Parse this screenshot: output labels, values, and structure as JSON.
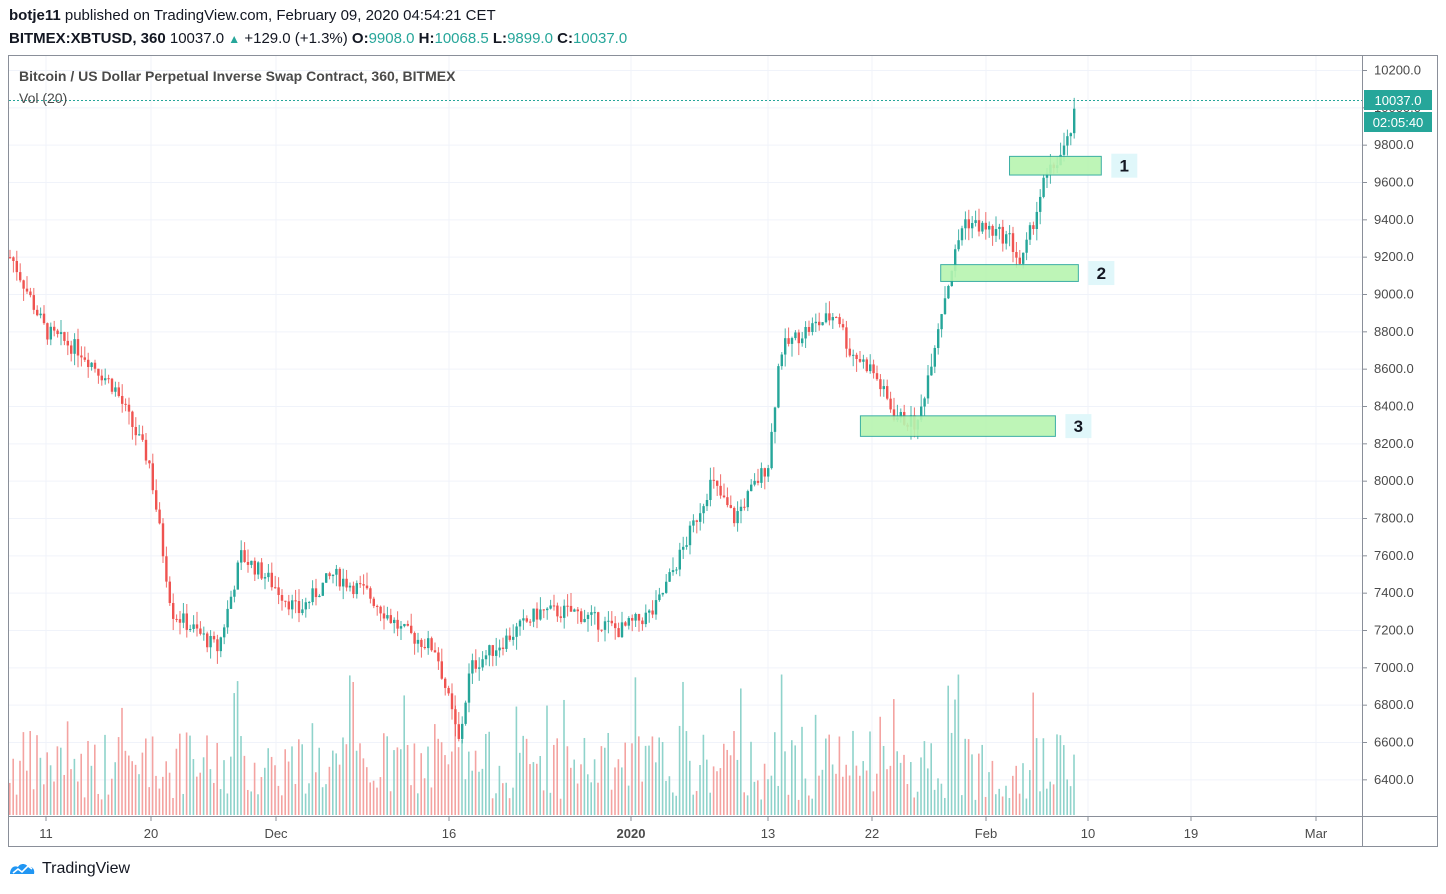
{
  "header": {
    "user": "botje11",
    "published": "published on TradingView.com, February 09, 2020 04:54:21 CET",
    "symbol": "BITMEX:XBTUSD, 360",
    "last": "10037.0",
    "change": "+129.0 (+1.3%)",
    "o_label": "O:",
    "o_value": "9908.0",
    "h_label": "H:",
    "h_value": "10068.5",
    "l_label": "L:",
    "l_value": "9899.0",
    "c_label": "C:",
    "c_value": "10037.0"
  },
  "chart": {
    "title": "Bitcoin / US Dollar Perpetual Inverse Swap Contract, 360, BITMEX",
    "volume_label": "Vol (20)",
    "price_tag": "10037.0",
    "countdown_tag": "02:05:40"
  },
  "footer": {
    "brand": "TradingView"
  },
  "colors": {
    "up": "#26a69a",
    "down": "#ef5350",
    "zone_fill": "#b7f5b0",
    "zone_stroke": "#26a69a",
    "grid": "#f0f3fa"
  },
  "chart_data": {
    "type": "candlestick",
    "title": "Bitcoin / US Dollar Perpetual Inverse Swap Contract, 360, BITMEX",
    "y_ticks": [
      "10200.0",
      "10000.0",
      "9800.0",
      "9600.0",
      "9400.0",
      "9200.0",
      "9000.0",
      "8800.0",
      "8600.0",
      "8400.0",
      "8200.0",
      "8000.0",
      "7800.0",
      "7600.0",
      "7400.0",
      "7200.0",
      "7000.0",
      "6800.0",
      "6600.0",
      "6400.0"
    ],
    "x_ticks": [
      "11",
      "20",
      "Dec",
      "16",
      "2020",
      "13",
      "22",
      "Feb",
      "10",
      "19",
      "Mar"
    ],
    "ylim": [
      6200,
      10300
    ],
    "last_price": 10037.0,
    "series": [
      {
        "name": "close (approx, sampled)",
        "dates": [
          "2019-11-08",
          "2019-11-11",
          "2019-11-14",
          "2019-11-17",
          "2019-11-20",
          "2019-11-22",
          "2019-11-24",
          "2019-11-26",
          "2019-11-28",
          "2019-11-30",
          "2019-12-03",
          "2019-12-06",
          "2019-12-09",
          "2019-12-12",
          "2019-12-15",
          "2019-12-17",
          "2019-12-18",
          "2019-12-20",
          "2019-12-24",
          "2019-12-27",
          "2019-12-31",
          "2020-01-03",
          "2020-01-06",
          "2020-01-08",
          "2020-01-10",
          "2020-01-13",
          "2020-01-14",
          "2020-01-16",
          "2020-01-19",
          "2020-01-20",
          "2020-01-22",
          "2020-01-24",
          "2020-01-26",
          "2020-01-28",
          "2020-01-30",
          "2020-02-01",
          "2020-02-03",
          "2020-02-04",
          "2020-02-06",
          "2020-02-08",
          "2020-02-09"
        ],
        "values": [
          9200,
          8800,
          8700,
          8500,
          8100,
          7300,
          7200,
          7100,
          7600,
          7500,
          7300,
          7500,
          7400,
          7200,
          7100,
          6600,
          7000,
          7100,
          7300,
          7300,
          7200,
          7300,
          7700,
          8000,
          7800,
          8100,
          8700,
          8800,
          8900,
          8700,
          8600,
          8350,
          8300,
          8900,
          9400,
          9350,
          9300,
          9150,
          9600,
          9800,
          10037
        ]
      }
    ],
    "zones": [
      {
        "label": "1",
        "from_date": "2020-02-03",
        "to_date": "2020-02-11",
        "low": 9640,
        "high": 9740
      },
      {
        "label": "2",
        "from_date": "2020-01-28",
        "to_date": "2020-02-09",
        "low": 9070,
        "high": 9160
      },
      {
        "label": "3",
        "from_date": "2020-01-21",
        "to_date": "2020-02-07",
        "low": 8240,
        "high": 8350
      }
    ],
    "grid": true,
    "volume_series": "Vol (20)"
  }
}
